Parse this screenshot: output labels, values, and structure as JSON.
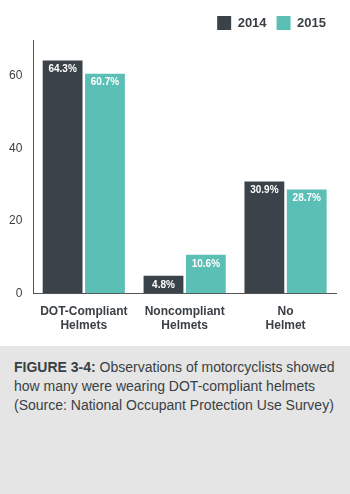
{
  "chart_data": {
    "type": "bar",
    "title": "FIGURE 3-4:",
    "subtitle": "Observations of motorcyclists showed how many were wearing DOT-compliant helmets (Source: National Occupant Protection Use Survey)",
    "categories": [
      "DOT-Compliant Helmets",
      "Noncompliant Helmets",
      "No Helmet"
    ],
    "series": [
      {
        "name": "2014",
        "color": "#3b434a",
        "values": [
          64.3,
          4.8,
          30.9
        ],
        "value_labels": [
          "64.3%",
          "4.8%",
          "30.9%"
        ]
      },
      {
        "name": "2015",
        "color": "#5cbfb6",
        "values": [
          60.7,
          10.6,
          28.7
        ],
        "value_labels": [
          "60.7%",
          "10.6%",
          "28.7%"
        ]
      }
    ],
    "ylim": [
      0,
      70
    ],
    "yticks": [
      0,
      20,
      40,
      60
    ],
    "grid": false,
    "legend": "top-right",
    "data_labels": true
  }
}
